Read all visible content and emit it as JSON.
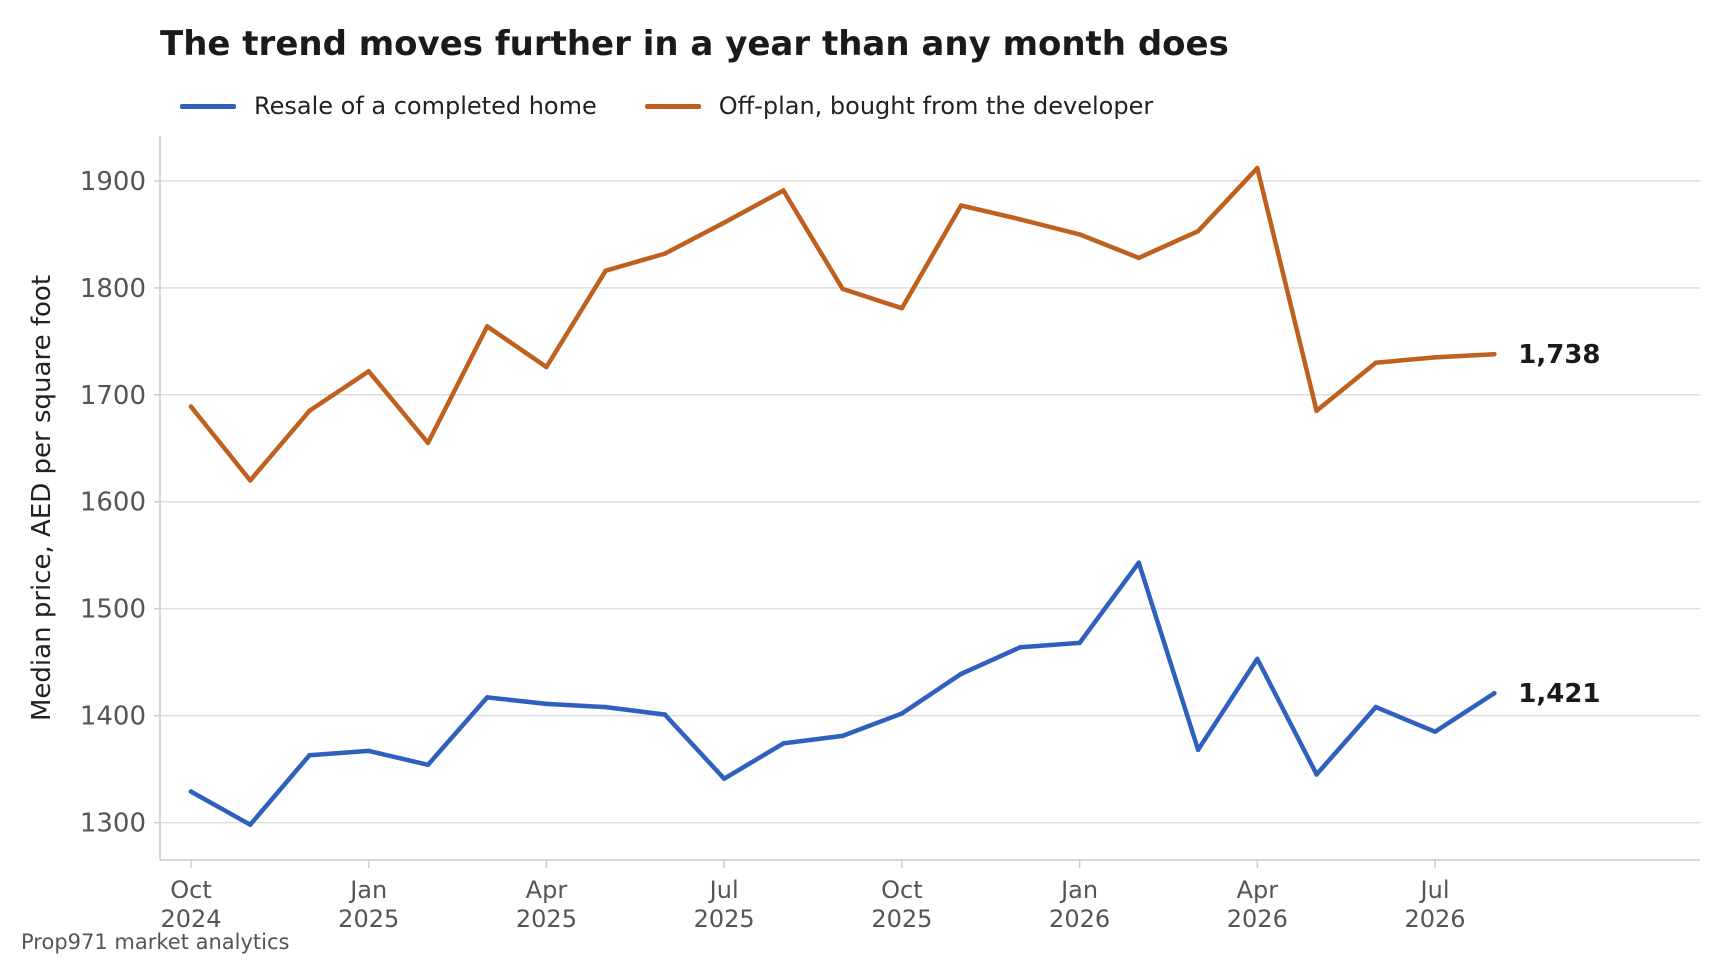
{
  "chart_data": {
    "type": "line",
    "title": "The trend moves further in a year than any month does",
    "xlabel": "",
    "ylabel": "Median price, AED per square foot",
    "ylim": [
      1265,
      1942
    ],
    "yticks": [
      1300,
      1400,
      1500,
      1600,
      1700,
      1800,
      1900
    ],
    "grid": "horizontal",
    "legend_position": "top-left",
    "x": [
      "2024-10",
      "2024-11",
      "2024-12",
      "2025-01",
      "2025-02",
      "2025-03",
      "2025-04",
      "2025-05",
      "2025-06",
      "2025-07",
      "2025-08",
      "2025-09",
      "2025-10",
      "2025-11",
      "2025-12",
      "2026-01",
      "2026-02",
      "2026-03",
      "2026-04",
      "2026-05",
      "2026-06",
      "2026-07",
      "2026-08"
    ],
    "xlim": [
      "2024-10",
      "2026-11"
    ],
    "xtick_labels": [
      {
        "month": "Oct",
        "year": "2024"
      },
      {
        "month": "Jan",
        "year": "2025"
      },
      {
        "month": "Apr",
        "year": "2025"
      },
      {
        "month": "Jul",
        "year": "2025"
      },
      {
        "month": "Oct",
        "year": "2025"
      },
      {
        "month": "Jan",
        "year": "2026"
      },
      {
        "month": "Apr",
        "year": "2026"
      },
      {
        "month": "Jul",
        "year": "2026"
      }
    ],
    "series": [
      {
        "name": "Resale of a completed home",
        "color": "#2f5fbf",
        "values": [
          1329,
          1298,
          1363,
          1367,
          1354,
          1417,
          1411,
          1408,
          1401,
          1341,
          1374,
          1381,
          1402,
          1439,
          1464,
          1468,
          1543,
          1368,
          1453,
          1345,
          1408,
          1385,
          1421
        ],
        "end_label": "1,421"
      },
      {
        "name": "Off-plan, bought from the developer",
        "color": "#c0601f",
        "values": [
          1689,
          1620,
          1685,
          1722,
          1655,
          1764,
          1726,
          1816,
          1832,
          1861,
          1891,
          1799,
          1781,
          1877,
          1864,
          1850,
          1828,
          1853,
          1912,
          1685,
          1730,
          1735,
          1738
        ],
        "end_label": "1,738"
      }
    ]
  },
  "source": "Prop971 market analytics"
}
